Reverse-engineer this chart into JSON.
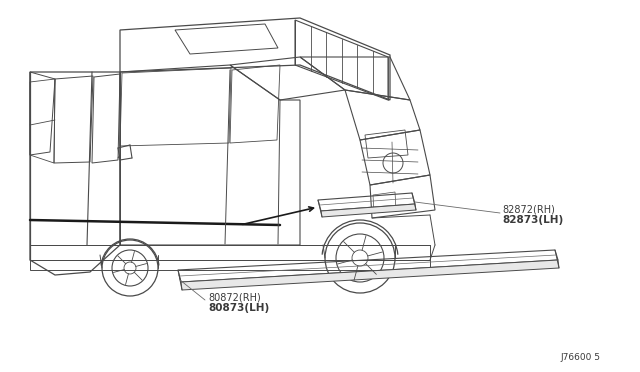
{
  "bg_color": "#ffffff",
  "line_color": "#4a4a4a",
  "thin_color": "#6a6a6a",
  "text_color": "#3a3a3a",
  "diagram_ref": "J76600 5",
  "labels": {
    "upper_rh": "82872(RH)",
    "upper_lh": "82873(LH)",
    "lower_rh": "80872(RH)",
    "lower_lh": "80873(LH)"
  },
  "figsize": [
    6.4,
    3.72
  ],
  "dpi": 100
}
